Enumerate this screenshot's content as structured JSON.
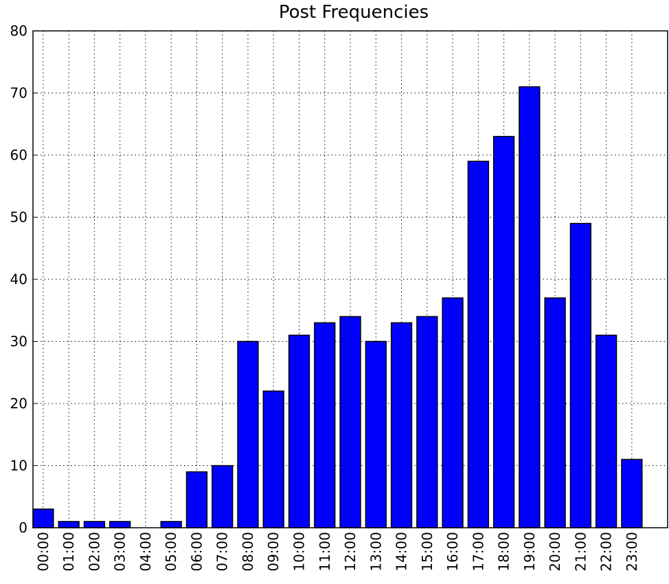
{
  "chart_data": {
    "type": "bar",
    "title": "Post Frequencies",
    "categories": [
      "00:00",
      "01:00",
      "02:00",
      "03:00",
      "04:00",
      "05:00",
      "06:00",
      "07:00",
      "08:00",
      "09:00",
      "10:00",
      "11:00",
      "12:00",
      "13:00",
      "14:00",
      "15:00",
      "16:00",
      "17:00",
      "18:00",
      "19:00",
      "20:00",
      "21:00",
      "22:00",
      "23:00"
    ],
    "values": [
      3,
      1,
      1,
      1,
      0,
      1,
      9,
      10,
      30,
      22,
      31,
      33,
      34,
      30,
      33,
      34,
      37,
      59,
      63,
      71,
      37,
      49,
      31,
      11
    ],
    "color": "#0000ff",
    "ylim": [
      0,
      80
    ],
    "yticks": [
      0,
      10,
      20,
      30,
      40,
      50,
      60,
      70,
      80
    ],
    "grid": true
  }
}
